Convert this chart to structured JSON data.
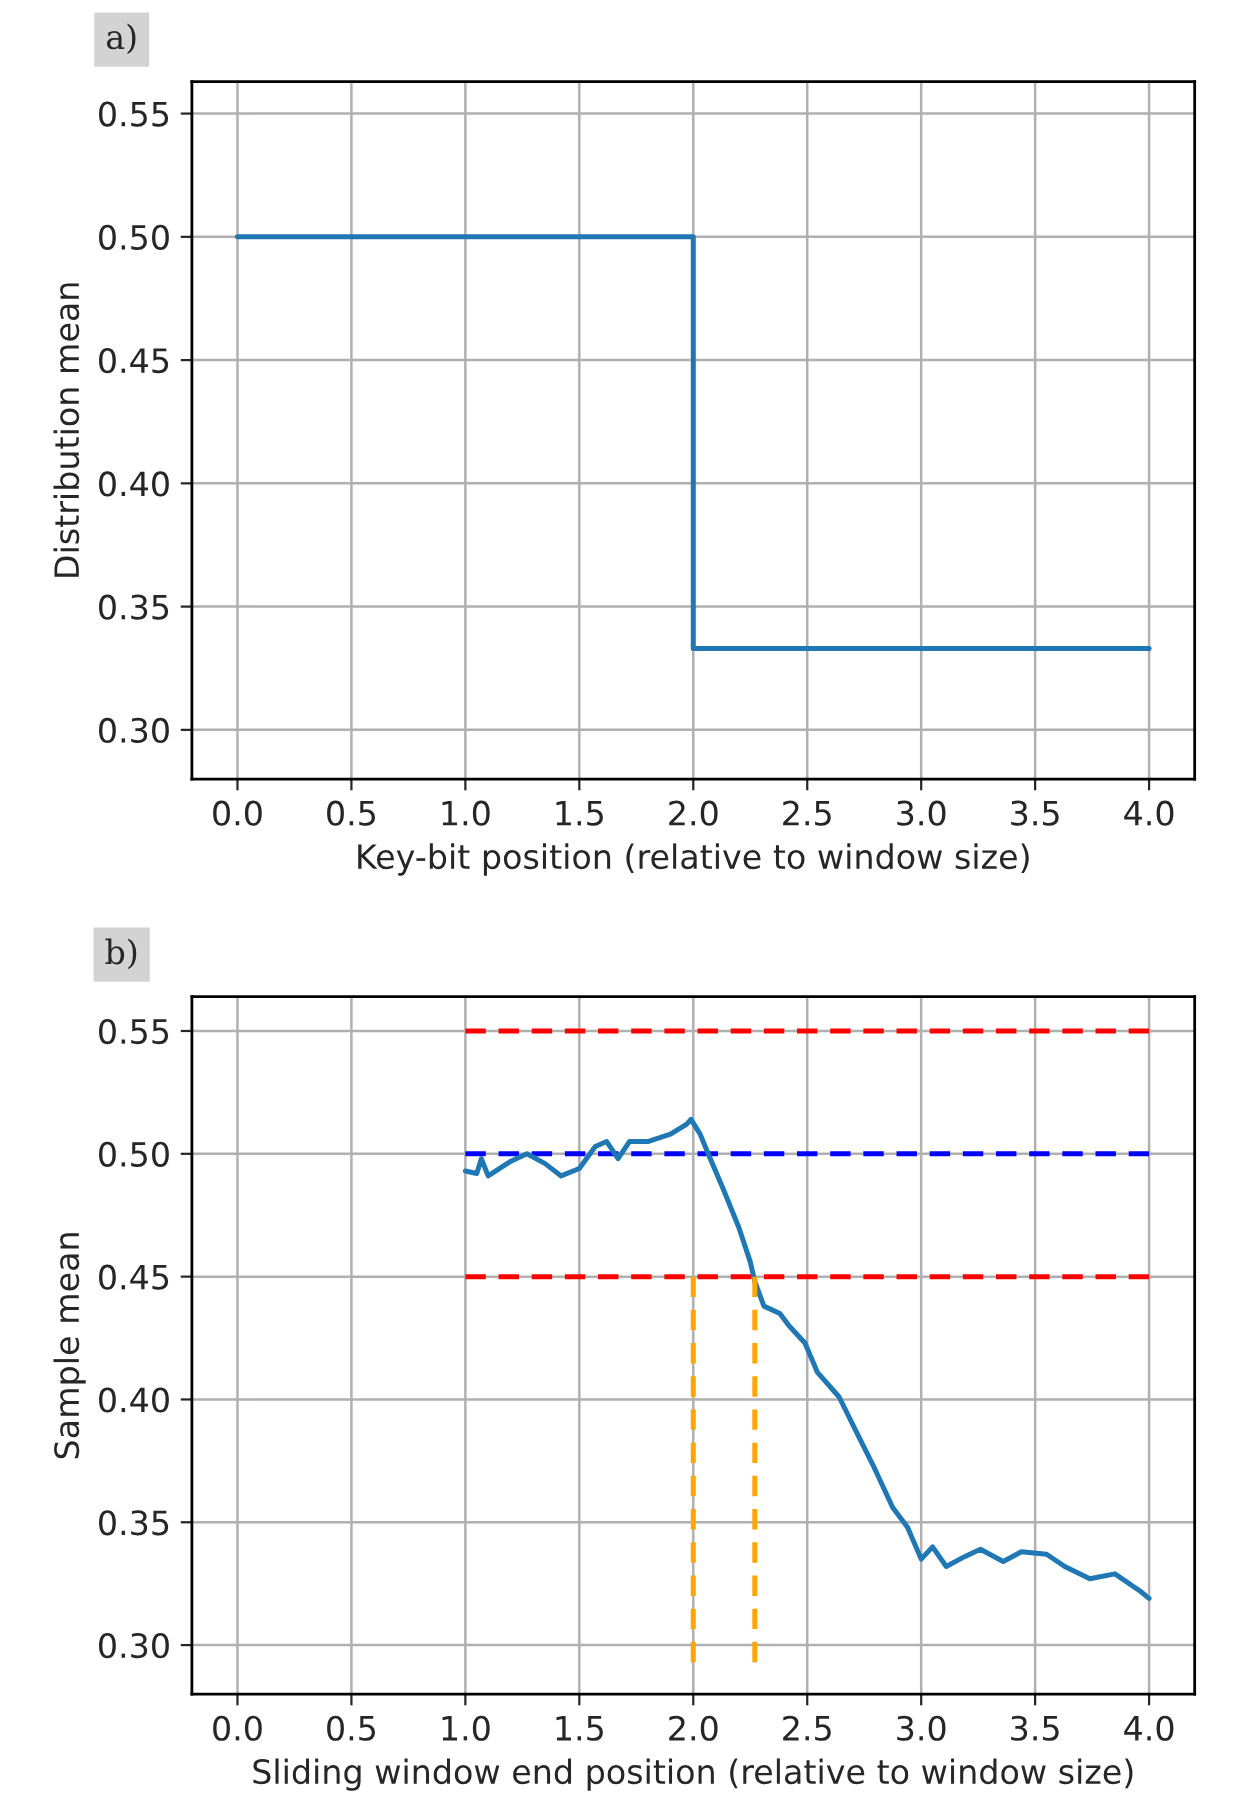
{
  "chart_data": [
    {
      "type": "line",
      "annotations": [
        "a)"
      ],
      "xlabel": "Key-bit position (relative to window size)",
      "ylabel": "Distribution mean",
      "xlim": [
        -0.2,
        4.2
      ],
      "ylim": [
        0.28,
        0.563
      ],
      "xticks": [
        {
          "value": 0,
          "label": "0.0"
        },
        0.5,
        {
          "value": 1,
          "label": "1.0"
        },
        1.5,
        {
          "value": 2,
          "label": "2.0"
        },
        2.5,
        {
          "value": 3,
          "label": "3.0"
        },
        3.5,
        {
          "value": 4,
          "label": "4.0"
        }
      ],
      "yticks": [
        {
          "value": 0.3,
          "label": "0.30"
        },
        0.35,
        {
          "value": 0.4,
          "label": "0.40"
        },
        0.45,
        {
          "value": 0.5,
          "label": "0.50"
        },
        0.55
      ],
      "grid": true,
      "series": [
        {
          "color": "#1f77b4",
          "x": [
            0,
            2,
            2,
            4
          ],
          "values": [
            0.5,
            0.5,
            0.333,
            0.333
          ]
        }
      ]
    },
    {
      "type": "line",
      "annotations": [
        "b)"
      ],
      "xlabel": "Sliding window end position (relative to window size)",
      "ylabel": "Sample mean",
      "xlim": [
        -0.2,
        4.2
      ],
      "ylim": [
        0.28,
        0.564
      ],
      "xticks": [
        {
          "value": 0,
          "label": "0.0"
        },
        0.5,
        {
          "value": 1,
          "label": "1.0"
        },
        1.5,
        {
          "value": 2,
          "label": "2.0"
        },
        2.5,
        {
          "value": 3,
          "label": "3.0"
        },
        3.5,
        {
          "value": 4,
          "label": "4.0"
        }
      ],
      "yticks": [
        {
          "value": 0.3,
          "label": "0.30"
        },
        0.35,
        {
          "value": 0.4,
          "label": "0.40"
        },
        0.45,
        {
          "value": 0.5,
          "label": "0.50"
        },
        0.55
      ],
      "grid": true,
      "series": [
        {
          "color": "#ff0000",
          "line_style": "dashed",
          "x": [
            1,
            4
          ],
          "values": [
            0.55,
            0.55
          ]
        },
        {
          "color": "#0000ff",
          "line_style": "dashed",
          "x": [
            1,
            4
          ],
          "values": [
            0.5,
            0.5
          ]
        },
        {
          "color": "#ff0000",
          "line_style": "dashed",
          "x": [
            1,
            4
          ],
          "values": [
            0.45,
            0.45
          ]
        },
        {
          "color": "#1f77b4",
          "x": [
            1.0,
            1.05,
            1.07,
            1.1,
            1.2,
            1.27,
            1.35,
            1.42,
            1.5,
            1.57,
            1.62,
            1.67,
            1.72,
            1.8,
            1.9,
            1.97,
            1.99,
            2.03,
            2.07,
            2.13,
            2.2,
            2.25,
            2.27,
            2.31,
            2.38,
            2.42,
            2.49,
            2.545,
            2.64,
            2.72,
            2.79,
            2.875,
            2.94,
            3.0,
            3.05,
            3.11,
            3.19,
            3.26,
            3.36,
            3.44,
            3.55,
            3.63,
            3.74,
            3.85,
            3.96,
            4.0
          ],
          "values": [
            0.493,
            0.492,
            0.498,
            0.491,
            0.497,
            0.5,
            0.496,
            0.491,
            0.494,
            0.503,
            0.505,
            0.498,
            0.505,
            0.505,
            0.508,
            0.512,
            0.514,
            0.508,
            0.499,
            0.486,
            0.47,
            0.456,
            0.448,
            0.438,
            0.435,
            0.43,
            0.423,
            0.411,
            0.401,
            0.386,
            0.373,
            0.356,
            0.348,
            0.335,
            0.34,
            0.332,
            0.336,
            0.339,
            0.334,
            0.338,
            0.337,
            0.332,
            0.327,
            0.329,
            0.322,
            0.319
          ]
        },
        {
          "color": "#ffa500",
          "line_style": "dashed",
          "x": [
            2,
            2
          ],
          "values": [
            0.45,
            0.293
          ]
        },
        {
          "color": "#ffa500",
          "line_style": "dashed",
          "x": [
            2.27,
            2.27
          ],
          "values": [
            0.45,
            0.293
          ]
        }
      ]
    }
  ]
}
